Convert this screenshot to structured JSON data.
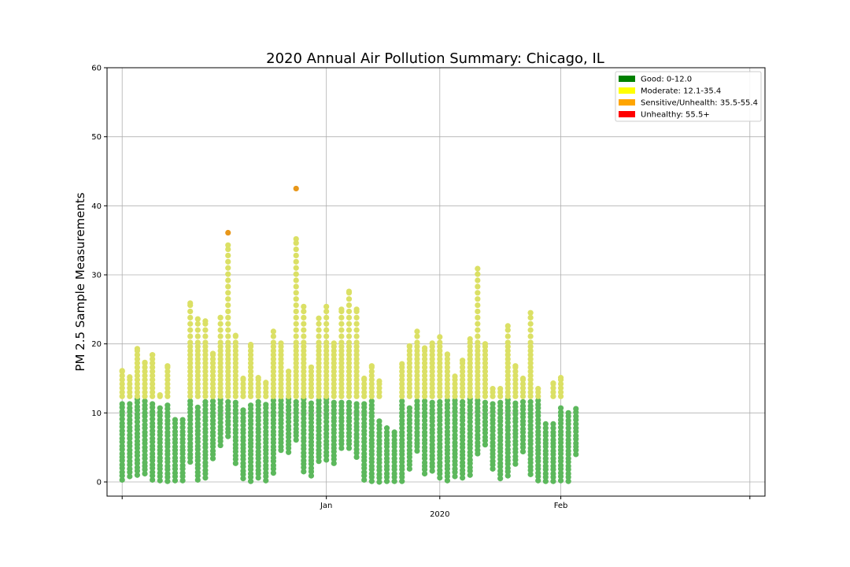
{
  "chart_data": {
    "type": "scatter",
    "title": "2020 Annual Air Pollution Summary: Chicago, IL",
    "xlabel": "",
    "ylabel": "PM 2.5 Sample Measurements",
    "ylim": [
      0,
      60
    ],
    "xlim": [
      "2019-12-03",
      "2020-02-28"
    ],
    "y_ticks": [
      0,
      10,
      20,
      30,
      40,
      50,
      60
    ],
    "x_ticks": [
      {
        "date": "2019-12-05",
        "label": "",
        "sublabel": ""
      },
      {
        "date": "2020-01-01",
        "label": "Jan",
        "sublabel": ""
      },
      {
        "date": "2020-01-16",
        "label": "",
        "sublabel": "2020"
      },
      {
        "date": "2020-02-01",
        "label": "Feb",
        "sublabel": ""
      },
      {
        "date": "2020-02-26",
        "label": "",
        "sublabel": ""
      }
    ],
    "grid": true,
    "legend_position": "top-right",
    "legend": [
      {
        "label": "Good: 0-12.0",
        "color": "#008000"
      },
      {
        "label": "Moderate: 12.1-35.4",
        "color": "#ffff00"
      },
      {
        "label": "Sensitive/Unhealth: 35.5-55.4",
        "color": "#ffa500"
      },
      {
        "label": "Unhealthy: 55.5+",
        "color": "#ff0000"
      }
    ],
    "category_colors": {
      "good": "#5cb85c",
      "moderate": "#dbe065",
      "sensitive": "#e8971a",
      "unhealthy": "#ff0000"
    },
    "thresholds": {
      "good_max": 12.0,
      "moderate_max": 35.4,
      "sensitive_max": 55.4
    },
    "daily_summary": {
      "description_fields": [
        "date",
        "min",
        "max_good",
        "moderate_max"
      ],
      "days": [
        [
          "2019-12-05",
          0.3,
          11.5,
          16.1
        ],
        [
          "2019-12-06",
          0.8,
          11.5,
          15.2
        ],
        [
          "2019-12-07",
          1.0,
          12.0,
          19.3
        ],
        [
          "2019-12-08",
          1.2,
          12.0,
          17.3
        ],
        [
          "2019-12-09",
          0.3,
          11.5,
          18.4
        ],
        [
          "2019-12-10",
          0.2,
          10.8,
          12.6
        ],
        [
          "2019-12-11",
          0.1,
          11.2,
          16.8
        ],
        [
          "2019-12-12",
          0.2,
          9.5,
          null
        ],
        [
          "2019-12-13",
          0.2,
          9.2,
          null
        ],
        [
          "2019-12-14",
          2.9,
          12.0,
          25.9
        ],
        [
          "2019-12-15",
          0.3,
          11.1,
          23.6
        ],
        [
          "2019-12-16",
          0.6,
          12.0,
          23.3
        ],
        [
          "2019-12-17",
          3.4,
          12.0,
          18.6
        ],
        [
          "2019-12-18",
          5.3,
          12.0,
          23.8
        ],
        [
          "2019-12-19",
          6.6,
          12.0,
          34.3
        ],
        [
          "2019-12-20",
          2.7,
          12.0,
          21.2
        ],
        [
          "2019-12-21",
          0.5,
          10.9,
          15.0
        ],
        [
          "2019-12-22",
          0.1,
          11.5,
          19.9
        ],
        [
          "2019-12-23",
          0.6,
          12.0,
          15.1
        ],
        [
          "2019-12-24",
          0.2,
          11.4,
          14.4
        ],
        [
          "2019-12-25",
          1.3,
          12.0,
          21.8
        ],
        [
          "2019-12-26",
          4.6,
          12.0,
          20.1
        ],
        [
          "2019-12-27",
          4.3,
          12.0,
          16.0
        ],
        [
          "2019-12-28",
          6.1,
          12.0,
          35.2
        ],
        [
          "2019-12-29",
          1.5,
          12.0,
          25.4
        ],
        [
          "2019-12-30",
          0.9,
          11.5,
          16.6
        ],
        [
          "2019-12-31",
          3.0,
          12.0,
          23.7
        ],
        [
          "2020-01-01",
          3.2,
          12.0,
          25.4
        ],
        [
          "2020-01-02",
          2.7,
          12.0,
          20.1
        ],
        [
          "2020-01-03",
          4.9,
          12.0,
          25.0
        ],
        [
          "2020-01-04",
          4.9,
          12.0,
          27.6
        ],
        [
          "2020-01-05",
          3.6,
          11.5,
          25.0
        ],
        [
          "2020-01-06",
          0.3,
          11.5,
          15.0
        ],
        [
          "2020-01-07",
          0.1,
          12.0,
          16.8
        ],
        [
          "2020-01-08",
          0.0,
          8.9,
          14.6
        ],
        [
          "2020-01-09",
          0.1,
          7.8,
          null
        ],
        [
          "2020-01-10",
          0.1,
          7.3,
          null
        ],
        [
          "2020-01-11",
          0.1,
          11.9,
          17.1
        ],
        [
          "2020-01-12",
          1.9,
          11.2,
          19.7
        ],
        [
          "2020-01-13",
          4.5,
          12.0,
          21.8
        ],
        [
          "2020-01-14",
          1.2,
          12.0,
          19.4
        ],
        [
          "2020-01-15",
          1.6,
          12.0,
          20.1
        ],
        [
          "2020-01-16",
          0.6,
          12.0,
          21.0
        ],
        [
          "2020-01-17",
          0.2,
          11.8,
          18.5
        ],
        [
          "2020-01-18",
          0.8,
          11.8,
          15.3
        ],
        [
          "2020-01-19",
          0.6,
          11.9,
          17.6
        ],
        [
          "2020-01-20",
          1.0,
          12.0,
          20.7
        ],
        [
          "2020-01-21",
          4.1,
          12.0,
          30.9
        ],
        [
          "2020-01-22",
          5.4,
          11.9,
          20.0
        ],
        [
          "2020-01-23",
          1.9,
          11.5,
          13.5
        ],
        [
          "2020-01-24",
          0.5,
          11.6,
          13.5
        ],
        [
          "2020-01-25",
          0.9,
          11.9,
          22.6
        ],
        [
          "2020-01-26",
          2.6,
          11.9,
          16.8
        ],
        [
          "2020-01-27",
          4.4,
          11.9,
          15.0
        ],
        [
          "2020-01-28",
          1.1,
          11.9,
          24.5
        ],
        [
          "2020-01-29",
          0.2,
          11.8,
          13.5
        ],
        [
          "2020-01-30",
          0.1,
          8.6,
          null
        ],
        [
          "2020-01-31",
          0.1,
          8.5,
          14.3
        ],
        [
          "2020-02-01",
          0.2,
          10.9,
          15.1
        ],
        [
          "2020-02-02",
          0.1,
          10.5,
          null
        ],
        [
          "2020-02-03",
          4.0,
          11.0,
          null
        ]
      ],
      "exceptions": [
        {
          "date": "2019-12-19",
          "value": 36.1,
          "category": "sensitive"
        },
        {
          "date": "2019-12-28",
          "value": 42.5,
          "category": "sensitive"
        }
      ]
    }
  }
}
